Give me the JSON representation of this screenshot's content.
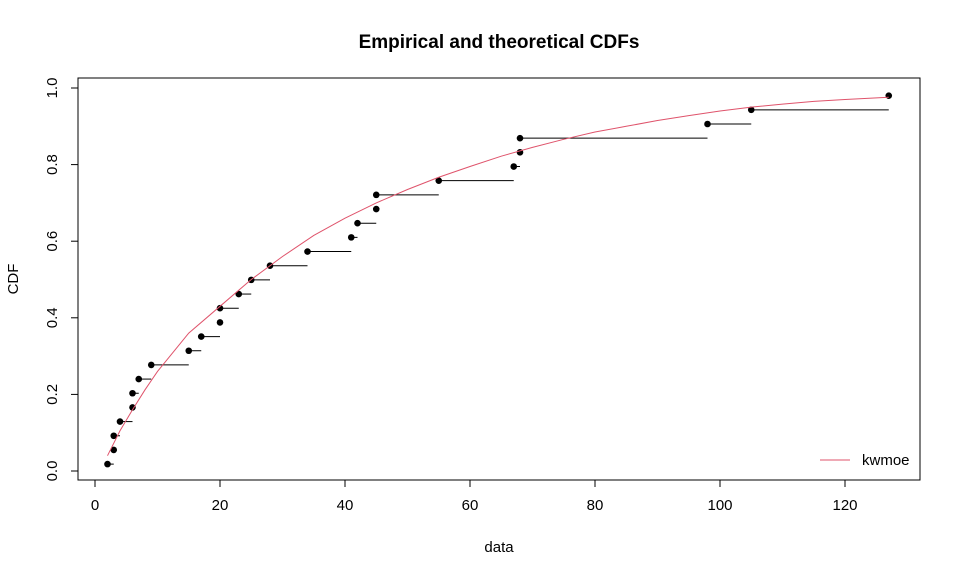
{
  "chart_data": {
    "type": "scatter",
    "title": "Empirical and theoretical CDFs",
    "xlabel": "data",
    "ylabel": "CDF",
    "xlim": [
      0,
      130
    ],
    "ylim": [
      0,
      1
    ],
    "xticks": [
      0,
      20,
      40,
      60,
      80,
      100,
      120
    ],
    "yticks": [
      "0.0",
      "0.2",
      "0.4",
      "0.6",
      "0.8",
      "1.0"
    ],
    "grid": false,
    "legend_position": "bottom-right",
    "series": [
      {
        "name": "kwmoe",
        "kind": "theoretical-cdf",
        "color": "#DF536B",
        "x": [
          2,
          4,
          6,
          8,
          10,
          15,
          20,
          25,
          30,
          35,
          40,
          45,
          50,
          55,
          60,
          65,
          70,
          75,
          80,
          85,
          90,
          95,
          100,
          105,
          110,
          115,
          120,
          127
        ],
        "y": [
          0.04,
          0.105,
          0.16,
          0.212,
          0.26,
          0.36,
          0.43,
          0.5,
          0.56,
          0.615,
          0.66,
          0.7,
          0.735,
          0.767,
          0.795,
          0.822,
          0.845,
          0.866,
          0.885,
          0.9,
          0.915,
          0.928,
          0.94,
          0.95,
          0.958,
          0.965,
          0.97,
          0.976
        ]
      },
      {
        "kind": "empirical-cdf",
        "color": "#000000",
        "x": [
          2,
          3,
          3,
          4,
          6,
          6,
          7,
          9,
          15,
          17,
          20,
          20,
          23,
          25,
          28,
          34,
          41,
          42,
          45,
          45,
          55,
          67,
          68,
          68,
          98,
          105,
          127
        ],
        "y": [
          0.018,
          0.055,
          0.092,
          0.129,
          0.166,
          0.203,
          0.24,
          0.277,
          0.314,
          0.351,
          0.388,
          0.425,
          0.462,
          0.499,
          0.536,
          0.573,
          0.61,
          0.647,
          0.684,
          0.721,
          0.758,
          0.795,
          0.832,
          0.869,
          0.906,
          0.943,
          0.98
        ]
      }
    ]
  }
}
